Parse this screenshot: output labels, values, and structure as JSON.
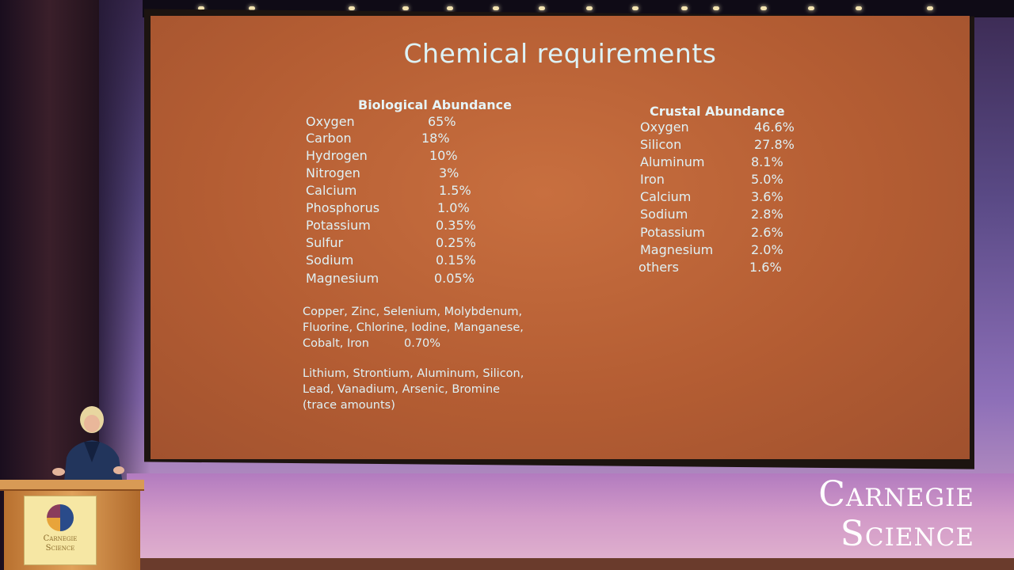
{
  "slide": {
    "title": "Chemical requirements",
    "biological": {
      "heading": "Biological Abundance",
      "rows": [
        {
          "name": "Oxygen",
          "value": "65%"
        },
        {
          "name": "Carbon",
          "value": "18%"
        },
        {
          "name": "Hydrogen",
          "value": "10%"
        },
        {
          "name": "Nitrogen",
          "value": "3%"
        },
        {
          "name": "Calcium",
          "value": "1.5%"
        },
        {
          "name": "Phosphorus",
          "value": "1.0%"
        },
        {
          "name": "Potassium",
          "value": "0.35%"
        },
        {
          "name": "Sulfur",
          "value": "0.25%"
        },
        {
          "name": "Sodium",
          "value": "0.15%"
        },
        {
          "name": "Magnesium",
          "value": "0.05%"
        }
      ],
      "trace_line1": "Copper, Zinc, Selenium, Molybdenum,",
      "trace_line2": "Fluorine, Chlorine, Iodine, Manganese,",
      "trace_line3": "Cobalt, Iron",
      "trace_value": "0.70%",
      "ultra_line1": "Lithium, Strontium, Aluminum, Silicon,",
      "ultra_line2": "Lead, Vanadium, Arsenic, Bromine",
      "ultra_line3": "(trace amounts)"
    },
    "crustal": {
      "heading": "Crustal Abundance",
      "rows": [
        {
          "name": "Oxygen",
          "value": "46.6%"
        },
        {
          "name": "Silicon",
          "value": "27.8%"
        },
        {
          "name": "Aluminum",
          "value": "8.1%"
        },
        {
          "name": "Iron",
          "value": "5.0%"
        },
        {
          "name": "Calcium",
          "value": "3.6%"
        },
        {
          "name": "Sodium",
          "value": "2.8%"
        },
        {
          "name": "Potassium",
          "value": "2.6%"
        },
        {
          "name": "Magnesium",
          "value": "2.0%"
        },
        {
          "name": "others",
          "value": "1.6%"
        }
      ]
    }
  },
  "branding": {
    "line1": "Carnegie",
    "line2": "Science"
  },
  "podium": {
    "line1": "Carnegie",
    "line2": "Science"
  }
}
